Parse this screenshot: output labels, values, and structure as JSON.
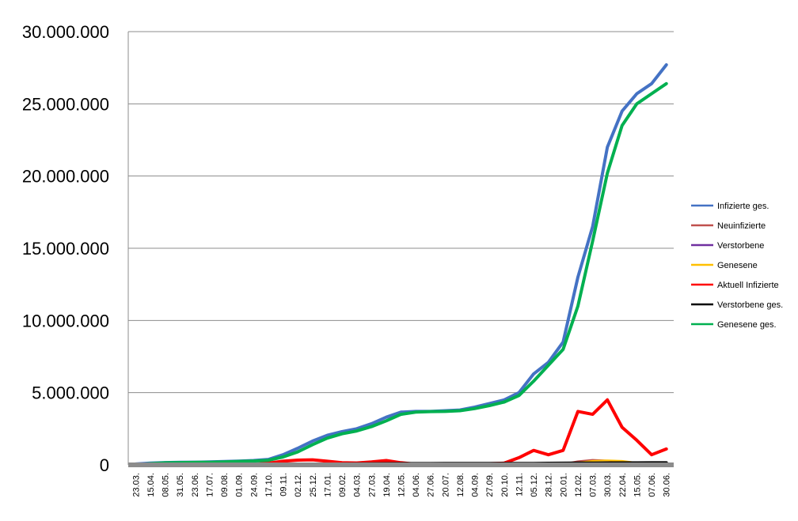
{
  "chart_data": {
    "type": "line",
    "title": "",
    "xlabel": "",
    "ylabel": "",
    "ylim": [
      0,
      30000000
    ],
    "yticks": [
      {
        "value": 0,
        "label": "0"
      },
      {
        "value": 5000000,
        "label": "5.000.000"
      },
      {
        "value": 10000000,
        "label": "10.000.000"
      },
      {
        "value": 15000000,
        "label": "15.000.000"
      },
      {
        "value": 20000000,
        "label": "20.000.000"
      },
      {
        "value": 25000000,
        "label": "25.000.000"
      },
      {
        "value": 30000000,
        "label": "30.000.000"
      }
    ],
    "grid": "horizontal",
    "legend_position": "right",
    "x": [
      "23.03.",
      "15.04.",
      "08.05.",
      "31.05.",
      "23.06.",
      "17.07.",
      "09.08.",
      "01.09.",
      "24.09.",
      "17.10.",
      "09.11.",
      "02.12.",
      "25.12.",
      "17.01.",
      "09.02.",
      "04.03.",
      "27.03.",
      "19.04.",
      "12.05.",
      "04.06.",
      "27.06.",
      "20.07.",
      "12.08.",
      "04.09.",
      "27.09.",
      "20.10.",
      "12.11.",
      "05.12.",
      "28.12.",
      "20.01.",
      "12.02.",
      "07.03.",
      "30.03.",
      "22.04.",
      "15.05.",
      "07.06.",
      "30.06."
    ],
    "series": [
      {
        "name": "Infizierte ges.",
        "color": "#4472C4",
        "values": [
          60000,
          120000,
          160000,
          175000,
          185000,
          200000,
          230000,
          260000,
          300000,
          380000,
          700000,
          1150000,
          1650000,
          2050000,
          2300000,
          2500000,
          2850000,
          3300000,
          3650000,
          3700000,
          3700000,
          3750000,
          3800000,
          4000000,
          4250000,
          4500000,
          5000000,
          6300000,
          7100000,
          8500000,
          13000000,
          16500000,
          22000000,
          24500000,
          25700000,
          26400000,
          27700000
        ]
      },
      {
        "name": "Neuinfizierte",
        "color": "#C0504D",
        "values": [
          2000,
          1000,
          500,
          300,
          500,
          1000,
          1500,
          2000,
          5000,
          12000,
          20000,
          25000,
          20000,
          15000,
          10000,
          8000,
          20000,
          25000,
          12000,
          5000,
          1000,
          800,
          800,
          2000,
          3000,
          5000,
          15000,
          30000,
          30000,
          60000,
          250000,
          350000,
          300000,
          200000,
          80000,
          40000,
          60000
        ]
      },
      {
        "name": "Verstorbene",
        "color": "#7030A0",
        "values": [
          50,
          60,
          40,
          20,
          10,
          10,
          10,
          10,
          50,
          150,
          350,
          500,
          600,
          550,
          450,
          300,
          250,
          200,
          120,
          60,
          20,
          10,
          10,
          20,
          40,
          80,
          150,
          300,
          400,
          400,
          500,
          450,
          400,
          350,
          250,
          150,
          100
        ]
      },
      {
        "name": "Genesene",
        "color": "#FFC000",
        "values": [
          1000,
          3000,
          3000,
          1500,
          800,
          500,
          800,
          1500,
          3000,
          8000,
          15000,
          22000,
          25000,
          20000,
          15000,
          10000,
          15000,
          22000,
          25000,
          15000,
          5000,
          2000,
          1000,
          1500,
          2500,
          4000,
          8000,
          20000,
          30000,
          40000,
          150000,
          280000,
          320000,
          280000,
          150000,
          80000,
          50000
        ]
      },
      {
        "name": "Aktuell Infizierte",
        "color": "#FF0000",
        "values": [
          50000,
          40000,
          15000,
          8000,
          7000,
          8000,
          12000,
          20000,
          40000,
          120000,
          250000,
          330000,
          350000,
          250000,
          150000,
          130000,
          200000,
          300000,
          150000,
          50000,
          10000,
          10000,
          15000,
          50000,
          80000,
          120000,
          500000,
          1000000,
          700000,
          1000000,
          3700000,
          3500000,
          4500000,
          2600000,
          1700000,
          700000,
          1100000
        ]
      },
      {
        "name": "Verstorbene ges.",
        "color": "#000000",
        "values": [
          1000,
          4000,
          7000,
          8000,
          8500,
          9000,
          9100,
          9300,
          9500,
          10000,
          13000,
          20000,
          30000,
          50000,
          62000,
          70000,
          76000,
          82000,
          86000,
          89000,
          90000,
          91000,
          91500,
          92000,
          93000,
          94000,
          96000,
          100000,
          108000,
          115000,
          120000,
          125000,
          130000,
          135000,
          138000,
          140000,
          141000
        ]
      },
      {
        "name": "Genesene ges.",
        "color": "#00B050",
        "values": [
          10000,
          80000,
          140000,
          160000,
          170000,
          180000,
          210000,
          240000,
          270000,
          320000,
          550000,
          900000,
          1400000,
          1850000,
          2150000,
          2350000,
          2650000,
          3050000,
          3500000,
          3650000,
          3690000,
          3700000,
          3750000,
          3900000,
          4100000,
          4350000,
          4800000,
          5800000,
          6900000,
          8000000,
          11000000,
          15500000,
          20200000,
          23500000,
          25000000,
          25700000,
          26400000
        ]
      }
    ]
  }
}
